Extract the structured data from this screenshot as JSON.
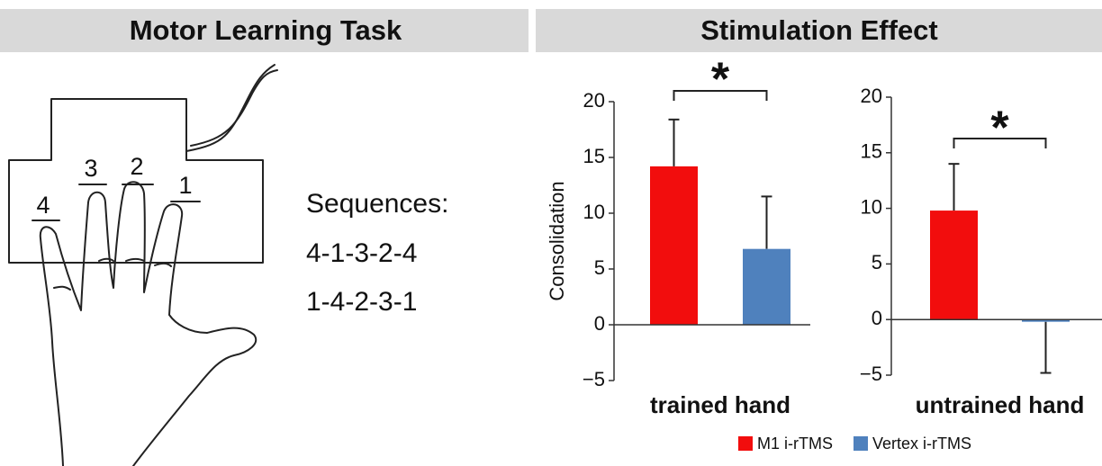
{
  "header": {
    "left": "Motor Learning Task",
    "right": "Stimulation Effect"
  },
  "fingers": [
    "4",
    "3",
    "2",
    "1"
  ],
  "sequences": {
    "title": "Sequences:",
    "items": [
      "4-1-3-2-4",
      "1-4-2-3-1"
    ]
  },
  "chart_data": [
    {
      "type": "bar",
      "xlabel": "trained hand",
      "ylabel": "Consolidation",
      "annotation": "*",
      "ylim": [
        -5,
        20
      ],
      "yticks": [
        {
          "value": -5,
          "label": "−5"
        },
        0,
        5,
        10,
        15,
        20
      ],
      "series": [
        {
          "name": "M1 i-rTMS",
          "color": "#f20d0d",
          "values": [
            14.2
          ],
          "errors": [
            4.2
          ]
        },
        {
          "name": "Vertex i-rTMS",
          "color": "#4f81bd",
          "values": [
            6.8
          ],
          "errors": [
            4.7
          ]
        }
      ]
    },
    {
      "type": "bar",
      "xlabel": "untrained hand",
      "annotation": "*",
      "ylim": [
        -5,
        20
      ],
      "yticks": [
        {
          "value": -5,
          "label": "−5"
        },
        0,
        5,
        10,
        15,
        20
      ],
      "series": [
        {
          "color": "#f20d0d",
          "values": [
            9.8
          ],
          "errors": [
            4.2
          ]
        },
        {
          "color": "#4f81bd",
          "values": [
            -0.2
          ],
          "errors": [
            4.6
          ]
        }
      ]
    }
  ]
}
